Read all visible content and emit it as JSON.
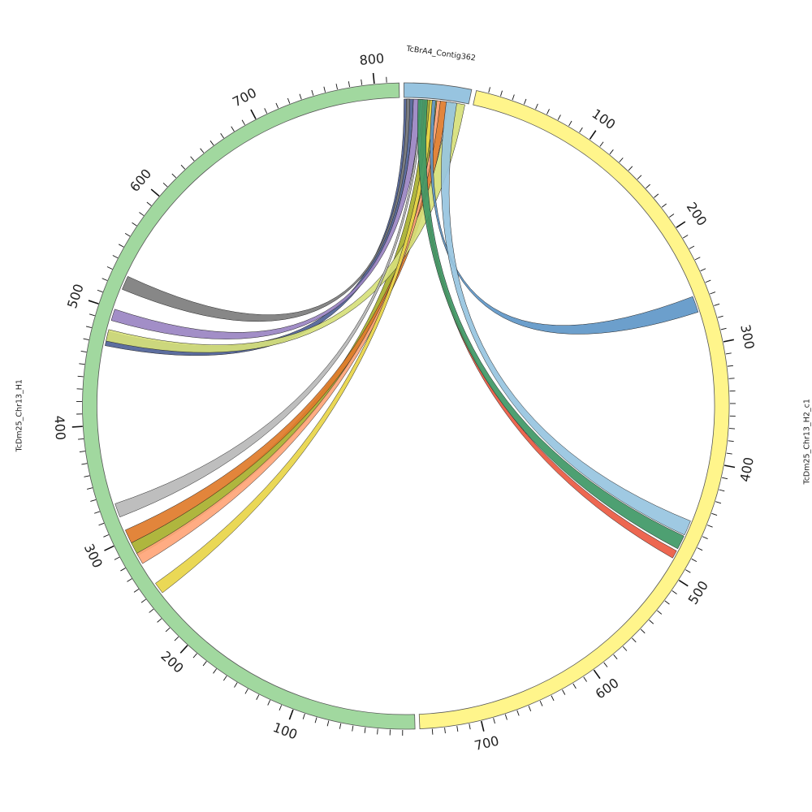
{
  "segments": [
    {
      "id": "contig362",
      "name": "TcBrA4_Contig362",
      "length": 55,
      "color": "#97c4e0",
      "ticks": [],
      "label_offset": 38,
      "label_rotate": 8
    },
    {
      "id": "h2",
      "name": "TcDm25_Chr13_H2_c1",
      "length": 750,
      "color": "#fff58b",
      "ticks": [
        "100",
        "200",
        "300",
        "400",
        "500",
        "600",
        "700"
      ],
      "label_offset": 98,
      "label_rotate": -90
    },
    {
      "id": "h1",
      "name": "TcDm25_Chr13_H1",
      "length": 820,
      "color": "#a1d89f",
      "ticks": [
        "100",
        "200",
        "300",
        "400",
        "500",
        "600",
        "700",
        "800"
      ],
      "label_offset": 78,
      "label_rotate": -90
    }
  ],
  "links": [
    {
      "color": "#4f6297",
      "a": {
        "seg": "contig362",
        "start": 0,
        "end": 8
      },
      "b": {
        "seg": "h1",
        "start": 468,
        "end": 480
      }
    },
    {
      "color": "#9a84c2",
      "a": {
        "seg": "contig362",
        "start": 8,
        "end": 14
      },
      "b": {
        "seg": "h1",
        "start": 490,
        "end": 500
      }
    },
    {
      "color": "#7d7d7d",
      "a": {
        "seg": "contig362",
        "start": 2,
        "end": 5
      },
      "b": {
        "seg": "h1",
        "start": 518,
        "end": 530
      }
    },
    {
      "color": "#eb5a42",
      "a": {
        "seg": "contig362",
        "start": 15,
        "end": 18
      },
      "b": {
        "seg": "h2",
        "start": 480,
        "end": 487
      }
    },
    {
      "color": "#a8b02e",
      "a": {
        "seg": "contig362",
        "start": 18,
        "end": 28
      },
      "b": {
        "seg": "h1",
        "start": 284,
        "end": 296
      }
    },
    {
      "color": "#e07b2a",
      "a": {
        "seg": "contig362",
        "start": 30,
        "end": 37
      },
      "b": {
        "seg": "h1",
        "start": 296,
        "end": 308
      }
    },
    {
      "color": "#d6e07a",
      "a": {
        "seg": "contig362",
        "start": 38,
        "end": 52
      },
      "b": {
        "seg": "h1",
        "start": 472,
        "end": 482
      }
    },
    {
      "color": "#b9b9b9",
      "a": {
        "seg": "contig362",
        "start": 14,
        "end": 16
      },
      "b": {
        "seg": "h1",
        "start": 320,
        "end": 332
      }
    },
    {
      "color": "#ffa578",
      "a": {
        "seg": "contig362",
        "start": 28,
        "end": 31
      },
      "b": {
        "seg": "h1",
        "start": 276,
        "end": 286
      }
    },
    {
      "color": "#e8d548",
      "a": {
        "seg": "contig362",
        "start": 22,
        "end": 26
      },
      "b": {
        "seg": "h1",
        "start": 246,
        "end": 256
      }
    },
    {
      "color": "#5f97c8",
      "a": {
        "seg": "contig362",
        "start": 24,
        "end": 27
      },
      "b": {
        "seg": "h2",
        "start": 257,
        "end": 271
      }
    },
    {
      "color": "#97c4e0",
      "a": {
        "seg": "contig362",
        "start": 36,
        "end": 45
      },
      "b": {
        "seg": "h2",
        "start": 452,
        "end": 465
      }
    },
    {
      "color": "#3f9866",
      "a": {
        "seg": "contig362",
        "start": 12,
        "end": 20
      },
      "b": {
        "seg": "h2",
        "start": 466,
        "end": 478
      }
    }
  ]
}
